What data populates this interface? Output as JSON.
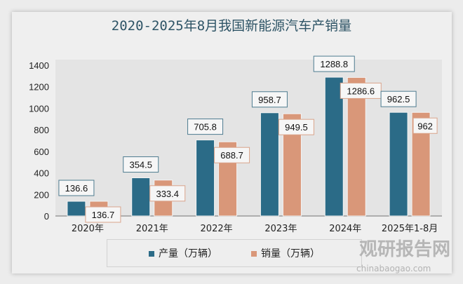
{
  "chart_data": {
    "type": "bar",
    "title": "2020-2025年8月我国新能源汽车产销量",
    "categories": [
      "2020年",
      "2021年",
      "2022年",
      "2023年",
      "2024年",
      "2025年1-8月"
    ],
    "series": [
      {
        "name": "产量（万辆）",
        "color": "#2b6b87",
        "values": [
          136.6,
          354.5,
          705.8,
          958.7,
          1288.8,
          962.5
        ],
        "labels": [
          "136.6",
          "354.5",
          "705.8",
          "958.7",
          "1288.8",
          "962.5"
        ]
      },
      {
        "name": "销量（万辆）",
        "color": "#d99779",
        "values": [
          136.7,
          333.4,
          688.7,
          949.5,
          1286.6,
          962
        ],
        "labels": [
          "136.7",
          "333.4",
          "688.7",
          "949.5",
          "1286.6",
          "962"
        ]
      }
    ],
    "ylim": [
      0,
      1400
    ],
    "yticks": [
      "0",
      "200",
      "400",
      "600",
      "800",
      "1000",
      "1200",
      "1400"
    ],
    "grid": false,
    "legend": "bottom"
  },
  "watermark": {
    "name": "观研报告网",
    "url": "chinabaogao.com"
  }
}
